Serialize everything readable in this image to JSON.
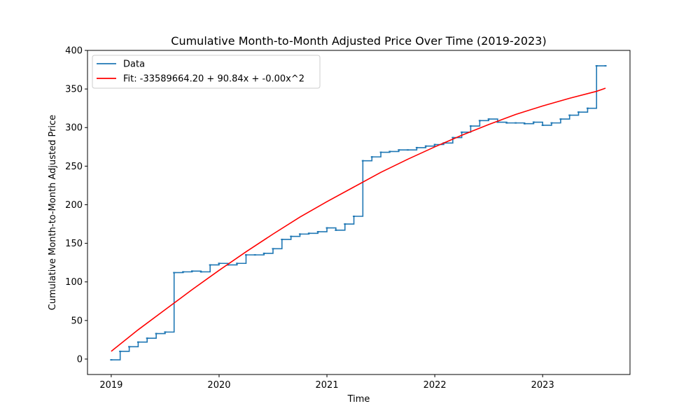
{
  "chart_data": {
    "type": "line",
    "title": "Cumulative Month-to-Month Adjusted Price Over Time (2019-2023)",
    "xlabel": "Time",
    "ylabel": "Cumulative Month-to-Month Adjusted Price",
    "xlim": [
      2018.78,
      2023.81
    ],
    "ylim": [
      -20,
      400
    ],
    "xticks": [
      2019,
      2020,
      2021,
      2022,
      2023
    ],
    "xtick_labels": [
      "2019",
      "2020",
      "2021",
      "2022",
      "2023"
    ],
    "yticks": [
      0,
      50,
      100,
      150,
      200,
      250,
      300,
      350,
      400
    ],
    "ytick_labels": [
      "0",
      "50",
      "100",
      "150",
      "200",
      "250",
      "300",
      "350",
      "400"
    ],
    "grid": false,
    "legend_position": "top-left",
    "series": [
      {
        "name": "Data",
        "style": "step",
        "color": "#1f77b4",
        "x": [
          2019.0,
          2019.083,
          2019.167,
          2019.25,
          2019.333,
          2019.417,
          2019.5,
          2019.583,
          2019.667,
          2019.75,
          2019.833,
          2019.917,
          2020.0,
          2020.083,
          2020.167,
          2020.25,
          2020.333,
          2020.417,
          2020.5,
          2020.583,
          2020.667,
          2020.75,
          2020.833,
          2020.917,
          2021.0,
          2021.083,
          2021.167,
          2021.25,
          2021.333,
          2021.417,
          2021.5,
          2021.583,
          2021.667,
          2021.75,
          2021.833,
          2021.917,
          2022.0,
          2022.083,
          2022.167,
          2022.25,
          2022.333,
          2022.417,
          2022.5,
          2022.583,
          2022.667,
          2022.75,
          2022.833,
          2022.917,
          2023.0,
          2023.083,
          2023.167,
          2023.25,
          2023.333,
          2023.417,
          2023.5,
          2023.583
        ],
        "y": [
          -1,
          10,
          16,
          22,
          27,
          33,
          35,
          112,
          113,
          114,
          113,
          122,
          124,
          122,
          124,
          135,
          135,
          137,
          143,
          155,
          159,
          162,
          163,
          165,
          170,
          167,
          175,
          185,
          257,
          262,
          268,
          269,
          271,
          271,
          274,
          276,
          278,
          280,
          287,
          294,
          302,
          309,
          311,
          307,
          306,
          306,
          305,
          307,
          303,
          306,
          311,
          316,
          320,
          325,
          380,
          380
        ]
      },
      {
        "name": "Fit: -33589664.20 + 90.84x + -0.00x^2",
        "style": "line",
        "color": "#ff0000",
        "x": [
          2019.0,
          2019.25,
          2019.5,
          2019.75,
          2020.0,
          2020.25,
          2020.5,
          2020.75,
          2021.0,
          2021.25,
          2021.5,
          2021.75,
          2022.0,
          2022.25,
          2022.5,
          2022.75,
          2023.0,
          2023.25,
          2023.5,
          2023.583
        ],
        "y": [
          10,
          38,
          64,
          90,
          115,
          139,
          162,
          184,
          204,
          223,
          242,
          259,
          275,
          290,
          304,
          317,
          328,
          338,
          347,
          351
        ]
      }
    ]
  }
}
